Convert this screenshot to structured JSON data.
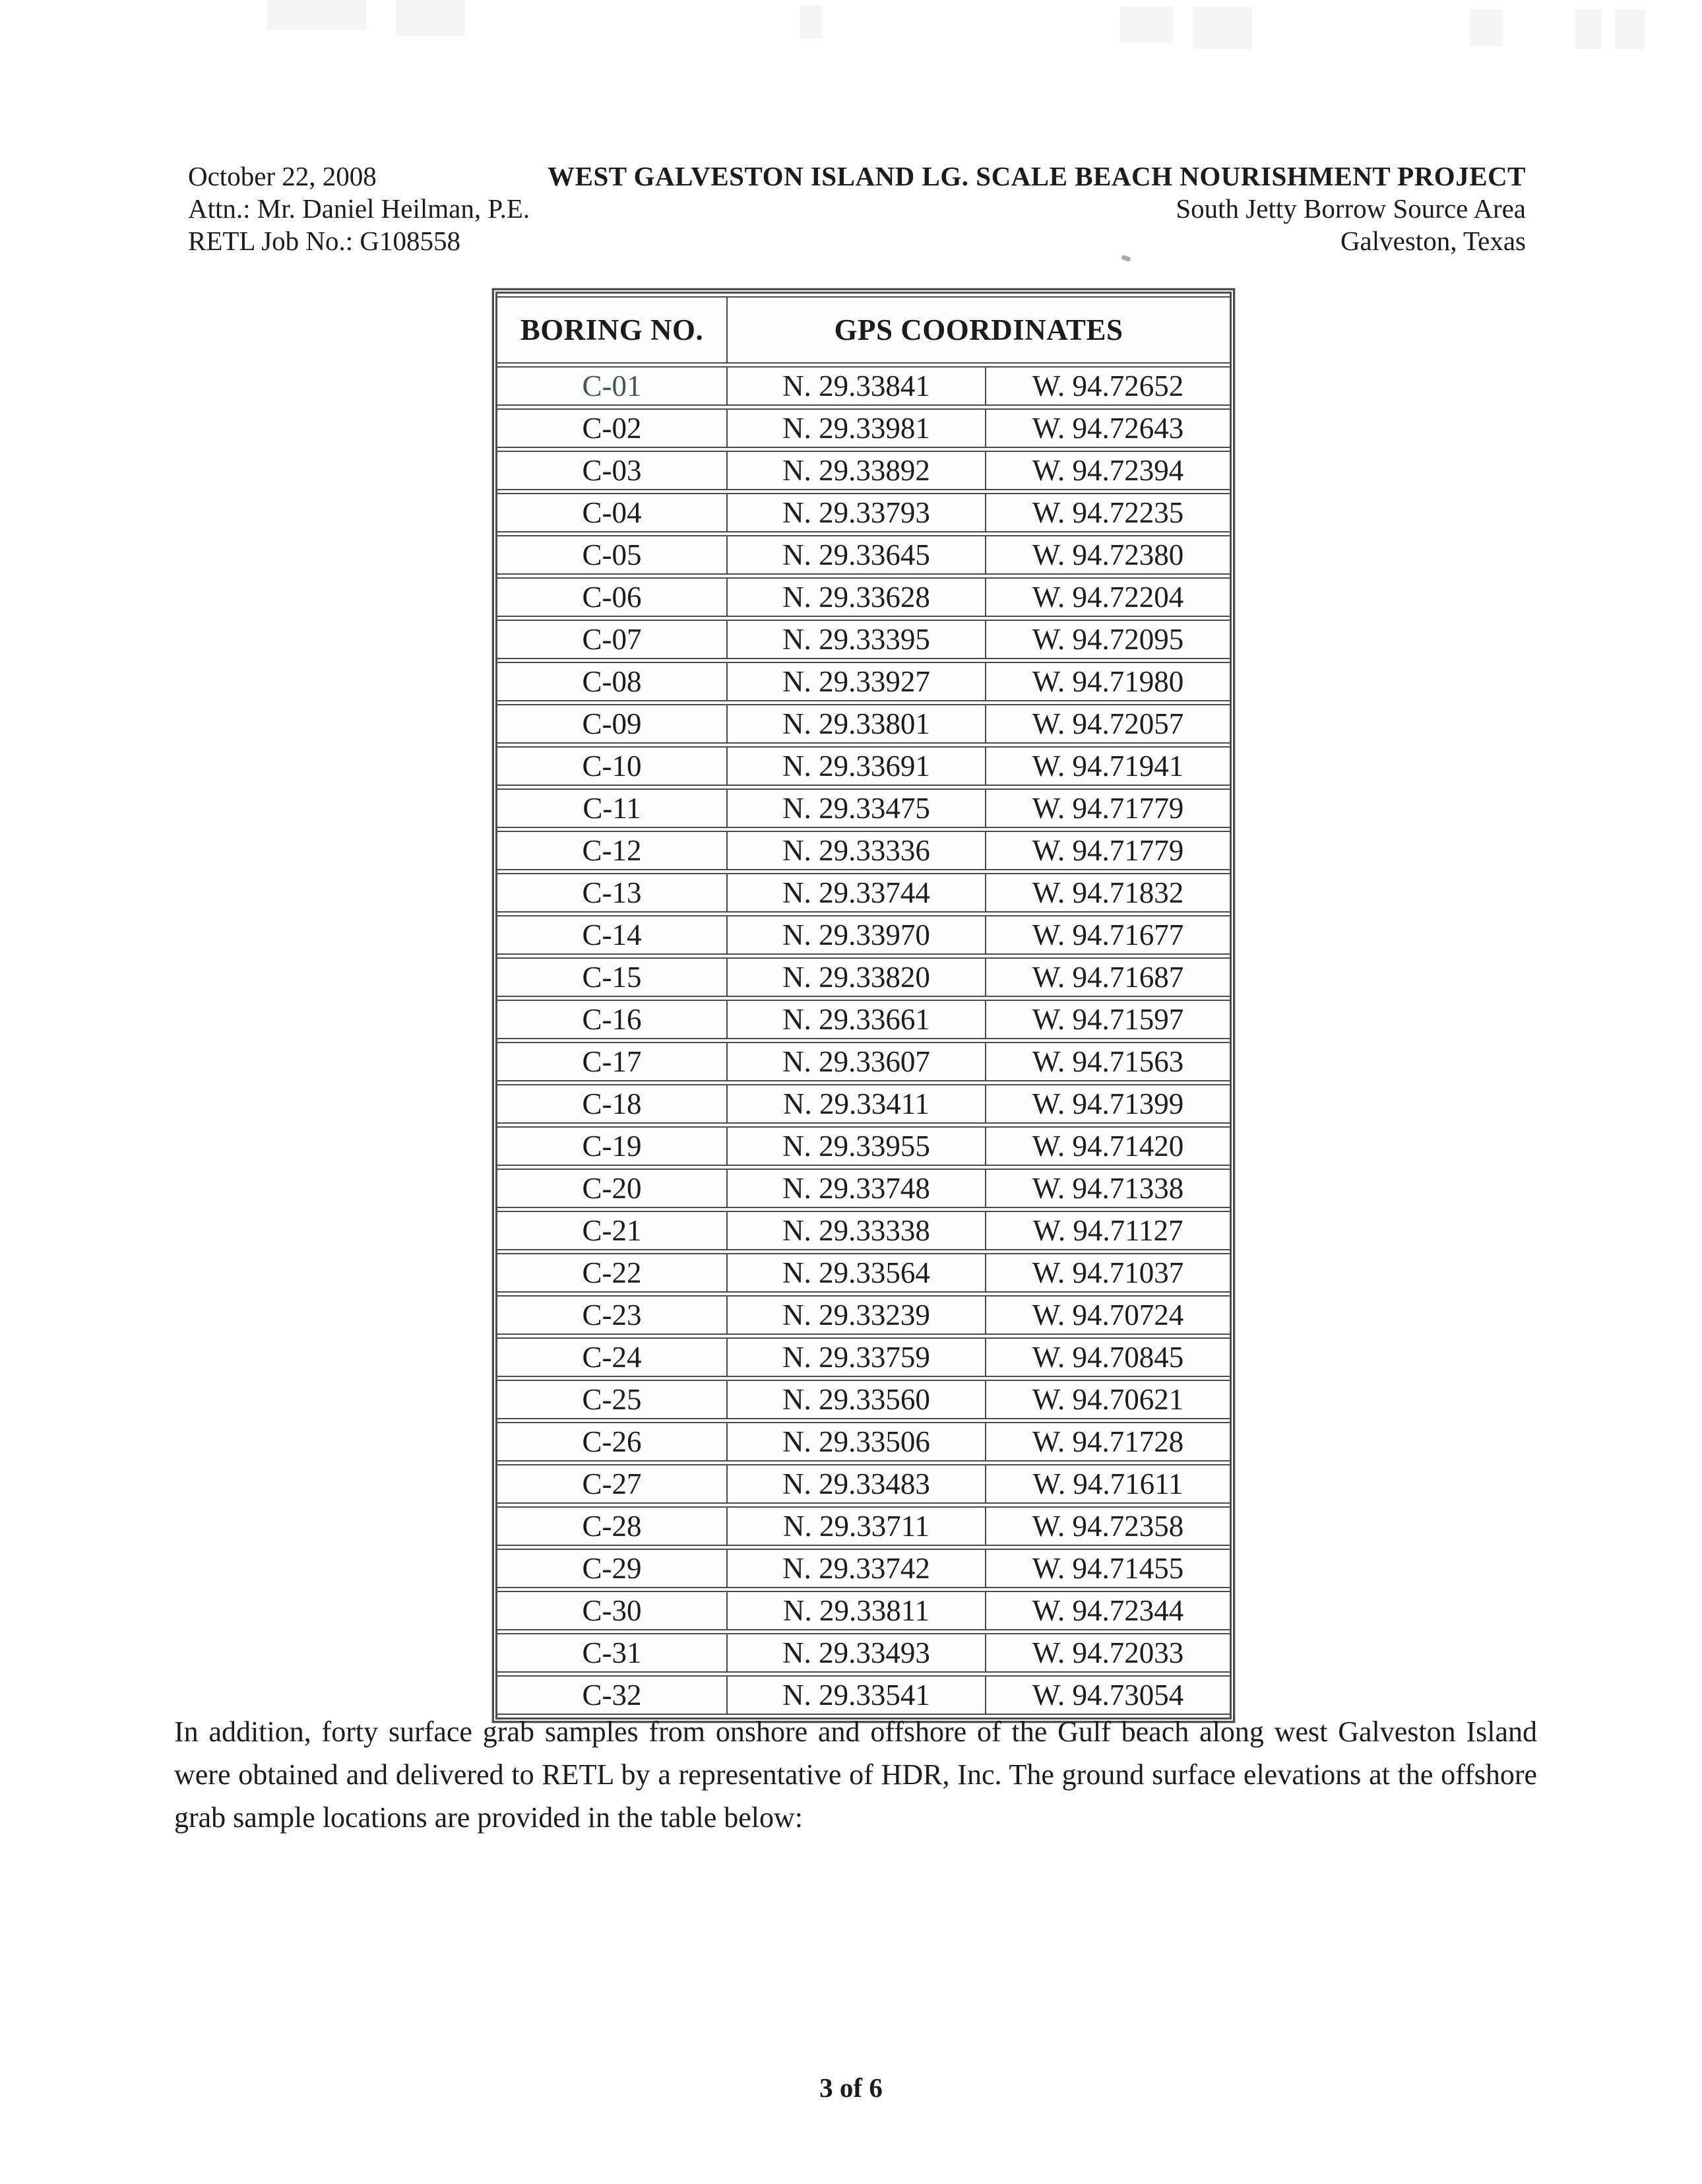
{
  "header": {
    "left": [
      "October 22, 2008",
      "Attn.: Mr. Daniel Heilman, P.E.",
      "RETL Job No.: G108558"
    ],
    "right": {
      "title": "WEST GALVESTON ISLAND LG. SCALE BEACH NOURISHMENT PROJECT",
      "line2": "South Jetty Borrow Source Area",
      "line3": "Galveston, Texas"
    }
  },
  "table": {
    "columns": {
      "boring": "BORING NO.",
      "gps": "GPS COORDINATES"
    },
    "rows": [
      {
        "boring": "C-01",
        "n": "N. 29.33841",
        "w": "W. 94.72652"
      },
      {
        "boring": "C-02",
        "n": "N. 29.33981",
        "w": "W. 94.72643"
      },
      {
        "boring": "C-03",
        "n": "N. 29.33892",
        "w": "W. 94.72394"
      },
      {
        "boring": "C-04",
        "n": "N. 29.33793",
        "w": "W. 94.72235"
      },
      {
        "boring": "C-05",
        "n": "N. 29.33645",
        "w": "W. 94.72380"
      },
      {
        "boring": "C-06",
        "n": "N. 29.33628",
        "w": "W. 94.72204"
      },
      {
        "boring": "C-07",
        "n": "N. 29.33395",
        "w": "W. 94.72095"
      },
      {
        "boring": "C-08",
        "n": "N. 29.33927",
        "w": "W. 94.71980"
      },
      {
        "boring": "C-09",
        "n": "N. 29.33801",
        "w": "W. 94.72057"
      },
      {
        "boring": "C-10",
        "n": "N. 29.33691",
        "w": "W. 94.71941"
      },
      {
        "boring": "C-11",
        "n": "N. 29.33475",
        "w": "W. 94.71779"
      },
      {
        "boring": "C-12",
        "n": "N. 29.33336",
        "w": "W. 94.71779"
      },
      {
        "boring": "C-13",
        "n": "N. 29.33744",
        "w": "W. 94.71832"
      },
      {
        "boring": "C-14",
        "n": "N. 29.33970",
        "w": "W. 94.71677"
      },
      {
        "boring": "C-15",
        "n": "N. 29.33820",
        "w": "W. 94.71687"
      },
      {
        "boring": "C-16",
        "n": "N. 29.33661",
        "w": "W. 94.71597"
      },
      {
        "boring": "C-17",
        "n": "N. 29.33607",
        "w": "W. 94.71563"
      },
      {
        "boring": "C-18",
        "n": "N. 29.33411",
        "w": "W. 94.71399"
      },
      {
        "boring": "C-19",
        "n": "N. 29.33955",
        "w": "W. 94.71420"
      },
      {
        "boring": "C-20",
        "n": "N. 29.33748",
        "w": "W. 94.71338"
      },
      {
        "boring": "C-21",
        "n": "N. 29.33338",
        "w": "W. 94.71127"
      },
      {
        "boring": "C-22",
        "n": "N. 29.33564",
        "w": "W. 94.71037"
      },
      {
        "boring": "C-23",
        "n": "N. 29.33239",
        "w": "W. 94.70724"
      },
      {
        "boring": "C-24",
        "n": "N. 29.33759",
        "w": "W. 94.70845"
      },
      {
        "boring": "C-25",
        "n": "N. 29.33560",
        "w": "W. 94.70621"
      },
      {
        "boring": "C-26",
        "n": "N. 29.33506",
        "w": "W. 94.71728"
      },
      {
        "boring": "C-27",
        "n": "N. 29.33483",
        "w": "W. 94.71611"
      },
      {
        "boring": "C-28",
        "n": "N. 29.33711",
        "w": "W. 94.72358"
      },
      {
        "boring": "C-29",
        "n": "N. 29.33742",
        "w": "W. 94.71455"
      },
      {
        "boring": "C-30",
        "n": "N. 29.33811",
        "w": "W. 94.72344"
      },
      {
        "boring": "C-31",
        "n": "N. 29.33493",
        "w": "W. 94.72033"
      },
      {
        "boring": "C-32",
        "n": "N. 29.33541",
        "w": "W. 94.73054"
      }
    ]
  },
  "paragraph": "In addition, forty surface grab samples from onshore and offshore of the Gulf beach along west Galveston Island were obtained and delivered to RETL by a representative of HDR, Inc. The ground surface elevations at the offshore grab sample locations are provided in the table below:",
  "footer": "3 of 6",
  "colors": {
    "text": "#1c1c1c",
    "table_border": "#4b4b4b",
    "first_boring_tint": "#3f5a50"
  }
}
